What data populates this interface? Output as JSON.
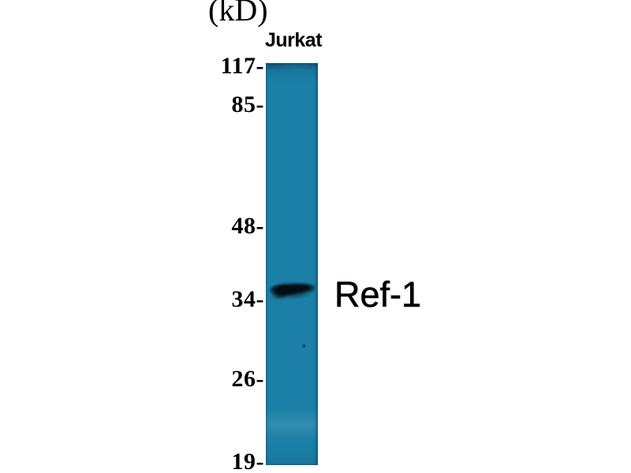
{
  "figure": {
    "unit_label": "(kD)",
    "lane": {
      "label": "Jurkat"
    },
    "band": {
      "label": "Ref-1"
    },
    "markers": [
      {
        "value": 117,
        "label": "117-"
      },
      {
        "value": 85,
        "label": "85-"
      },
      {
        "value": 48,
        "label": "48-"
      },
      {
        "value": 34,
        "label": "34-"
      },
      {
        "value": 26,
        "label": "26-"
      },
      {
        "value": 19,
        "label": "19-"
      }
    ],
    "colors": {
      "lane_teal": "#1c7fa7",
      "band_dark": "#06121c",
      "text": "#000000",
      "bg": "#ffffff"
    }
  }
}
